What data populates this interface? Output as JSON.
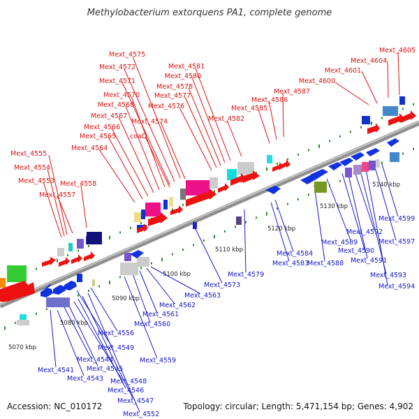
{
  "title": "Methylobacterium extorquens PA1, complete genome",
  "footer": {
    "accession": "Accession: NC_010172",
    "summary": "Topology: circular; Length: 5,471,154 bp; Genes: 4,902"
  },
  "colors": {
    "top_label": "#dd1111",
    "bottom_label": "#1515cc",
    "backbone": "#9a9a9a",
    "tick_dot": "#2a8a2a"
  },
  "ticks": [
    "5070 kbp",
    "5080 kbp",
    "5090 kbp",
    "5100 kbp",
    "5110 kbp",
    "5120 kbp",
    "5130 kbp",
    "5140 kbp"
  ],
  "top_labels": [
    "Mext_4575",
    "Mext_4572",
    "Mext_4571",
    "Mext_4570",
    "Mext_4568",
    "Mext_4567",
    "Mext_4566",
    "Mext_4565",
    "Mext_4564",
    "coaD",
    "Mext_4574",
    "Mext_4581",
    "Mext_4580",
    "Mext_4578",
    "Mext_4577",
    "Mext_4576",
    "Mext_4582",
    "Mext_4585",
    "Mext_4586",
    "Mext_4587",
    "Mext_4600",
    "Mext_4601",
    "Mext_4604",
    "Mext_4605",
    "Mext_4555",
    "Mext_4554",
    "Mext_4553",
    "Mext_4557",
    "Mext_4558"
  ],
  "bottom_labels": [
    "Mext_4541",
    "Mext_4543",
    "Mext_4544",
    "Mext_4545",
    "Mext_4548",
    "Mext_4546",
    "Mext_4547",
    "Mext_4552",
    "Mext_4549",
    "Mext_4556",
    "Mext_4559",
    "Mext_4560",
    "Mext_4561",
    "Mext_4562",
    "Mext_4563",
    "Mext_4573",
    "Mext_4579",
    "Mext_4583",
    "Mext_4584",
    "Mext_4588",
    "Mext_4589",
    "Mext_4590",
    "Mext_4591",
    "Mext_4592",
    "Mext_4593",
    "Mext_4594",
    "Mext_4597",
    "Mext_4599"
  ]
}
